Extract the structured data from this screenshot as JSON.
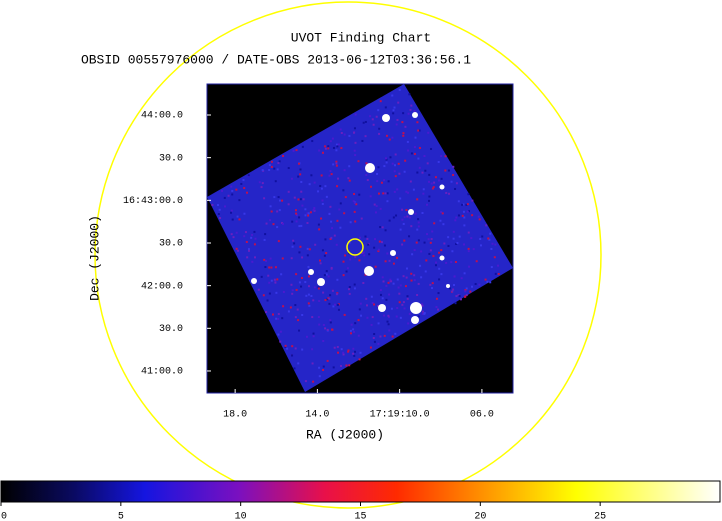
{
  "chart_data": {
    "type": "image",
    "title": "UVOT Finding Chart",
    "subtitle": "OBSID 00557976000 / DATE-OBS 2013-06-12T03:36:56.1",
    "xlabel": "RA (J2000)",
    "ylabel": "Dec (J2000)",
    "xlim": [
      259.8307,
      259.7687
    ],
    "xticks": [
      {
        "value": 259.825,
        "label": "18.0"
      },
      {
        "value": 259.808333,
        "label": "14.0"
      },
      {
        "value": 259.791667,
        "label": "17:19:10.0"
      },
      {
        "value": 259.775,
        "label": "06.0"
      }
    ],
    "ylim": [
      16.67903,
      16.73939
    ],
    "yticks": [
      {
        "value": 16.733333,
        "label": "44:00.0"
      },
      {
        "value": 16.725,
        "label": "30.0"
      },
      {
        "value": 16.716667,
        "label": "16:43:00.0"
      },
      {
        "value": 16.708333,
        "label": "30.0"
      },
      {
        "value": 16.7,
        "label": "42:00.0"
      },
      {
        "value": 16.691667,
        "label": "30.0"
      },
      {
        "value": 16.683333,
        "label": "41:00.0"
      }
    ],
    "colorbar": {
      "lim": [
        0,
        30
      ],
      "ticks": [
        0,
        5,
        10,
        15,
        20,
        25
      ]
    }
  }
}
